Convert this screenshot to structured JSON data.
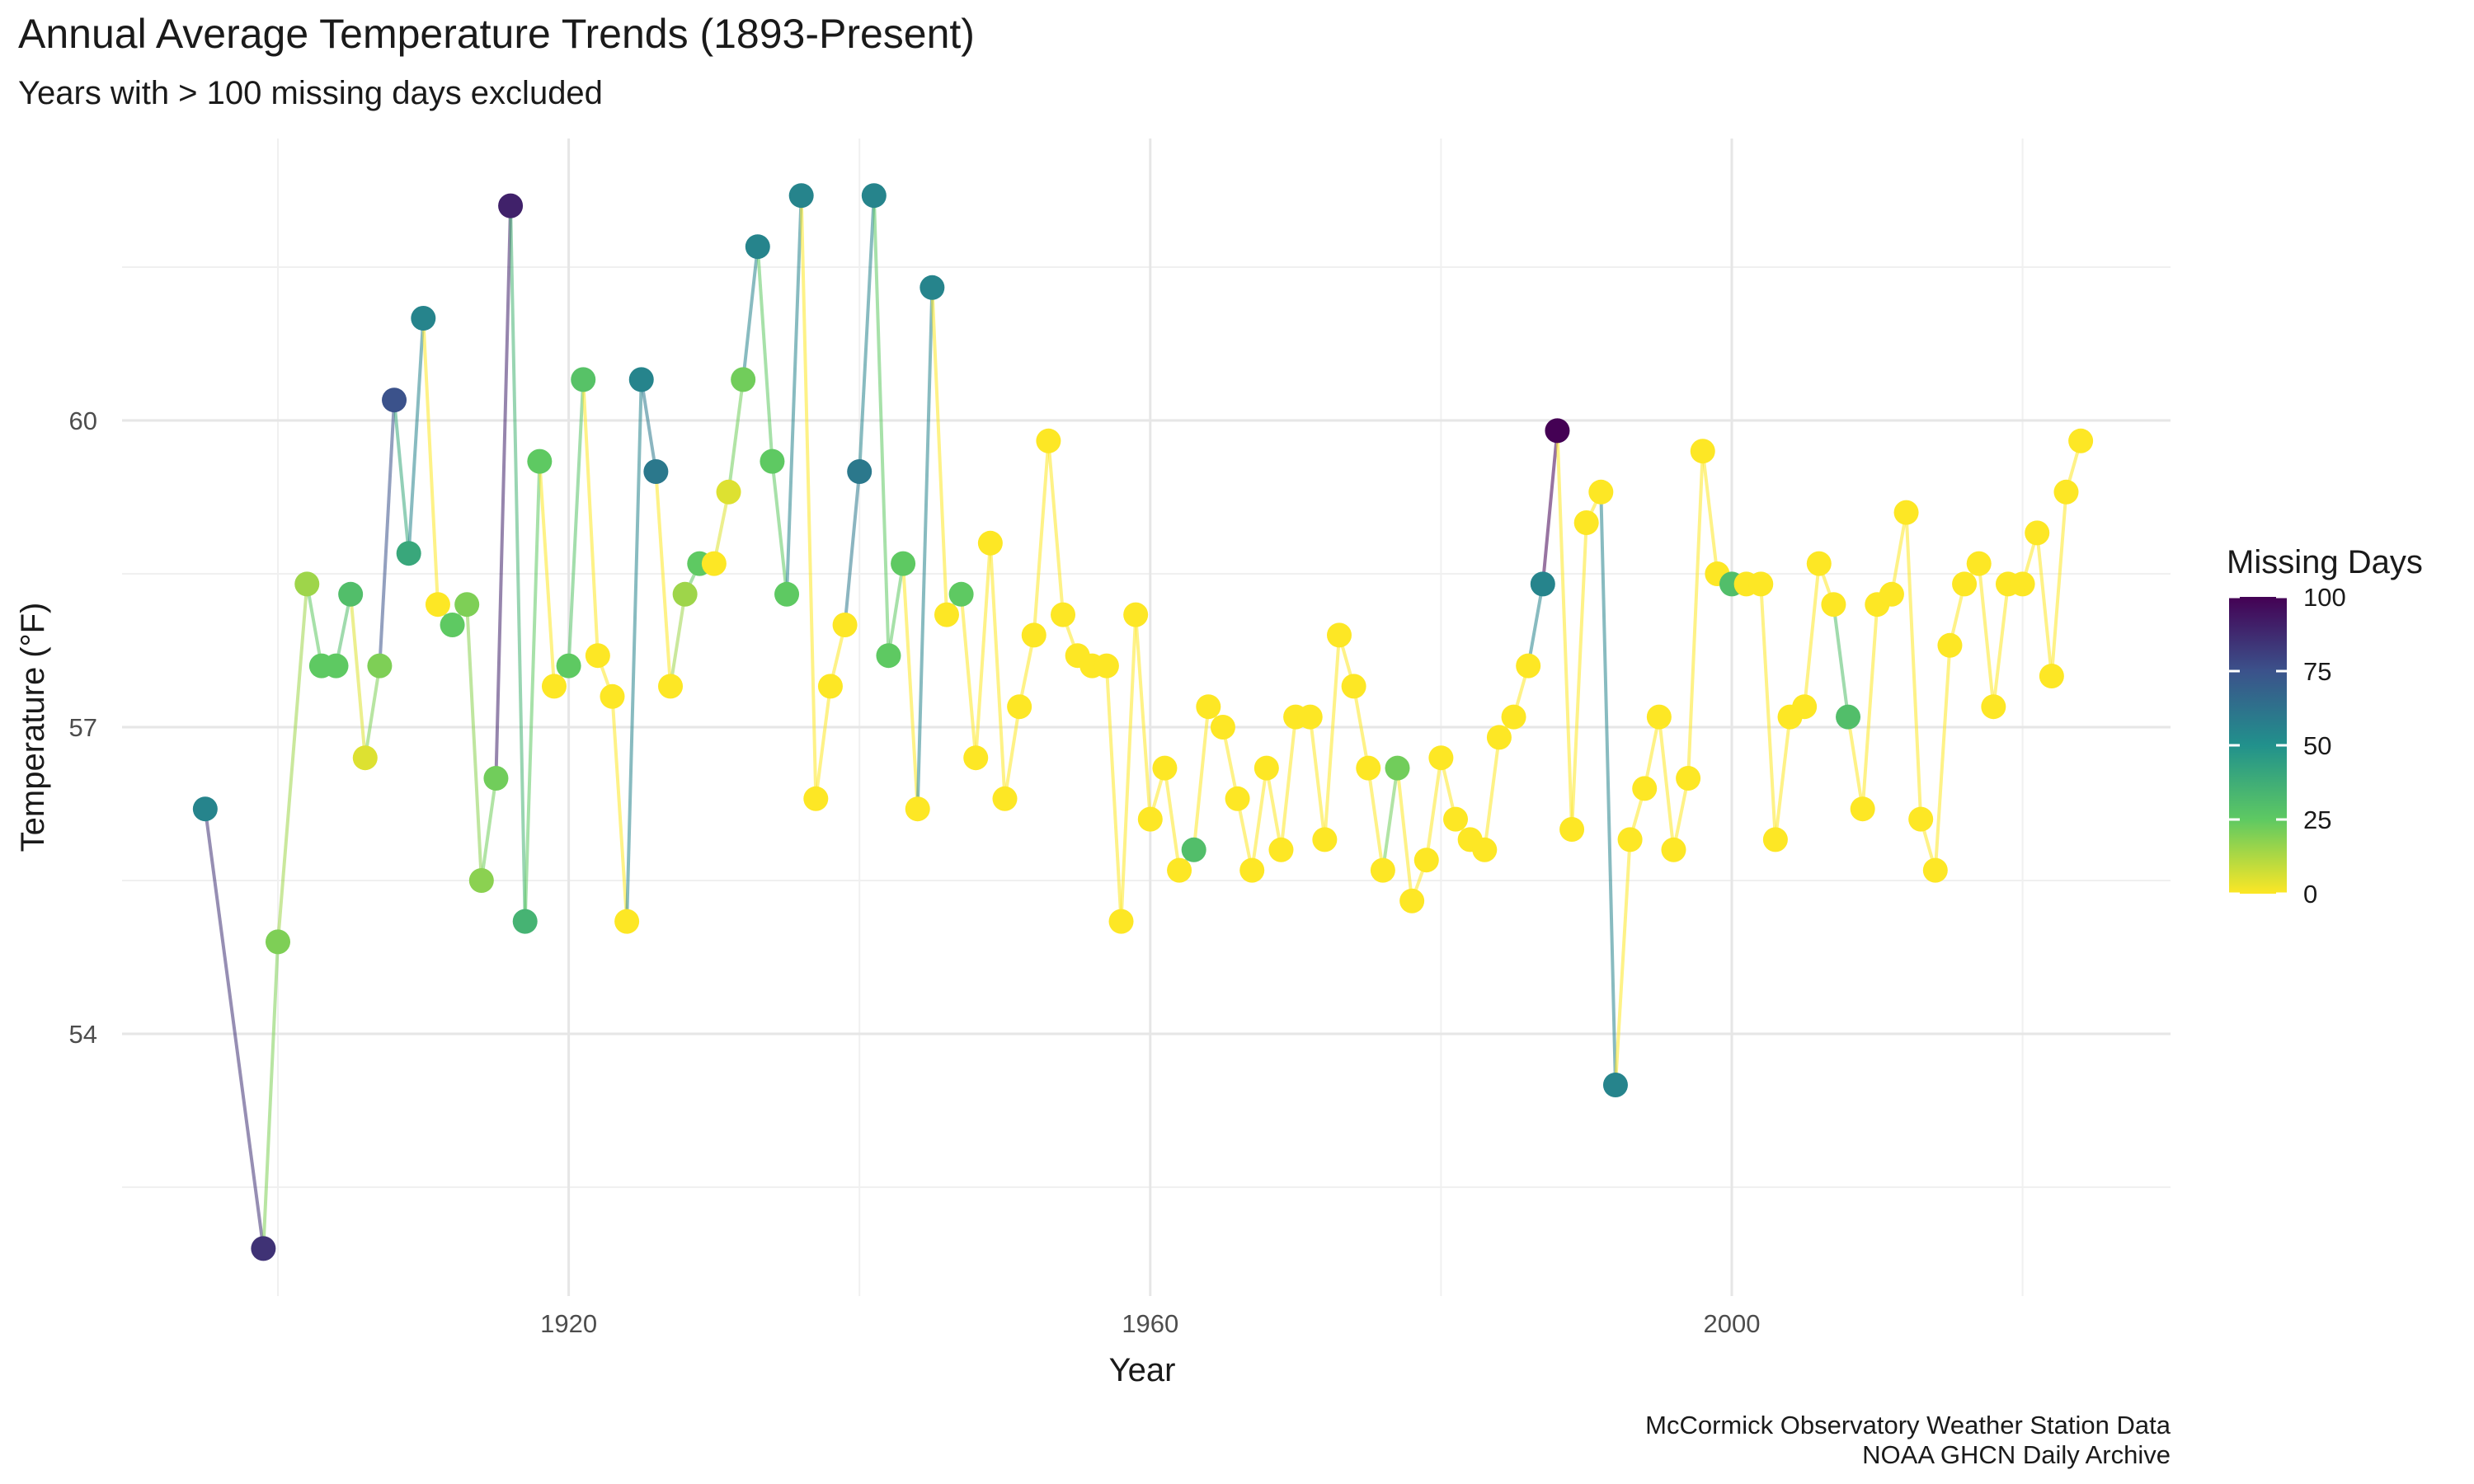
{
  "chart_data": {
    "type": "line",
    "title": "Annual Average Temperature Trends (1893-Present)",
    "subtitle": "Years with > 100 missing days excluded",
    "xlabel": "Year",
    "ylabel": "Temperature (°F)",
    "xlim": [
      1889,
      2027
    ],
    "ylim": [
      52.5,
      62.3
    ],
    "xticks": [
      1920,
      1960,
      2000
    ],
    "xtick_labels": [
      "1920",
      "1960",
      "2000"
    ],
    "yticks": [
      54,
      57,
      60
    ],
    "ytick_labels": [
      "54",
      "57",
      "60"
    ],
    "grid": true,
    "legend": {
      "title": "Missing Days",
      "position": "right",
      "colormap": "viridis (reversed: 0 = yellow, 100 = dark purple)",
      "ticks": [
        0,
        25,
        50,
        75,
        100
      ],
      "tick_labels": [
        "0",
        "25",
        "50",
        "75",
        "100"
      ],
      "range": [
        0,
        100
      ]
    },
    "caption": [
      "McCormick Observatory Weather Station Data",
      "NOAA GHCN Daily Archive"
    ],
    "series": [
      {
        "x_y_missing": [
          [
            1895,
            56.2,
            55
          ],
          [
            1899,
            51.9,
            85
          ],
          [
            1900,
            54.9,
            20
          ],
          [
            1902,
            58.4,
            15
          ],
          [
            1903,
            57.6,
            25
          ],
          [
            1904,
            57.6,
            25
          ],
          [
            1905,
            58.3,
            30
          ],
          [
            1906,
            56.7,
            5
          ],
          [
            1907,
            57.6,
            20
          ],
          [
            1908,
            60.2,
            75
          ],
          [
            1909,
            58.7,
            40
          ],
          [
            1910,
            61.0,
            55
          ],
          [
            1911,
            58.2,
            0
          ],
          [
            1912,
            58.0,
            25
          ],
          [
            1913,
            58.2,
            20
          ],
          [
            1914,
            55.5,
            18
          ],
          [
            1915,
            56.5,
            22
          ],
          [
            1916,
            62.1,
            90
          ],
          [
            1917,
            55.1,
            35
          ],
          [
            1918,
            59.6,
            25
          ],
          [
            1919,
            57.4,
            0
          ],
          [
            1920,
            57.6,
            25
          ],
          [
            1921,
            60.4,
            28
          ],
          [
            1922,
            57.7,
            0
          ],
          [
            1923,
            57.3,
            0
          ],
          [
            1924,
            55.1,
            0
          ],
          [
            1925,
            60.4,
            55
          ],
          [
            1926,
            59.5,
            60
          ],
          [
            1927,
            57.4,
            0
          ],
          [
            1928,
            58.3,
            15
          ],
          [
            1929,
            58.6,
            25
          ],
          [
            1930,
            58.6,
            0
          ],
          [
            1931,
            59.3,
            5
          ],
          [
            1932,
            60.4,
            22
          ],
          [
            1933,
            61.7,
            55
          ],
          [
            1934,
            59.6,
            25
          ],
          [
            1935,
            58.3,
            25
          ],
          [
            1936,
            62.2,
            55
          ],
          [
            1937,
            56.3,
            0
          ],
          [
            1938,
            57.4,
            0
          ],
          [
            1939,
            58.0,
            0
          ],
          [
            1940,
            59.5,
            60
          ],
          [
            1941,
            62.2,
            55
          ],
          [
            1942,
            57.7,
            25
          ],
          [
            1943,
            58.6,
            25
          ],
          [
            1944,
            56.2,
            0
          ],
          [
            1945,
            61.3,
            55
          ],
          [
            1946,
            58.1,
            0
          ],
          [
            1947,
            58.3,
            25
          ],
          [
            1948,
            56.7,
            0
          ],
          [
            1949,
            58.8,
            0
          ],
          [
            1950,
            56.3,
            0
          ],
          [
            1951,
            57.2,
            0
          ],
          [
            1952,
            57.9,
            0
          ],
          [
            1953,
            59.8,
            0
          ],
          [
            1954,
            58.1,
            0
          ],
          [
            1955,
            57.7,
            0
          ],
          [
            1956,
            57.6,
            0
          ],
          [
            1957,
            57.6,
            0
          ],
          [
            1958,
            55.1,
            0
          ],
          [
            1959,
            58.1,
            0
          ],
          [
            1960,
            56.1,
            0
          ],
          [
            1961,
            56.6,
            0
          ],
          [
            1962,
            55.6,
            0
          ],
          [
            1963,
            55.8,
            30
          ],
          [
            1964,
            57.2,
            0
          ],
          [
            1965,
            57.0,
            0
          ],
          [
            1966,
            56.3,
            0
          ],
          [
            1967,
            55.6,
            0
          ],
          [
            1968,
            56.6,
            0
          ],
          [
            1969,
            55.8,
            0
          ],
          [
            1970,
            57.1,
            0
          ],
          [
            1971,
            57.1,
            0
          ],
          [
            1972,
            55.9,
            0
          ],
          [
            1973,
            57.9,
            0
          ],
          [
            1974,
            57.4,
            0
          ],
          [
            1975,
            56.6,
            0
          ],
          [
            1976,
            55.6,
            0
          ],
          [
            1977,
            56.6,
            22
          ],
          [
            1978,
            55.3,
            0
          ],
          [
            1979,
            55.7,
            0
          ],
          [
            1980,
            56.7,
            0
          ],
          [
            1981,
            56.1,
            0
          ],
          [
            1982,
            55.9,
            0
          ],
          [
            1983,
            55.8,
            0
          ],
          [
            1984,
            56.9,
            0
          ],
          [
            1985,
            57.1,
            0
          ],
          [
            1986,
            57.6,
            0
          ],
          [
            1987,
            58.4,
            55
          ],
          [
            1988,
            59.9,
            100
          ],
          [
            1989,
            56.0,
            0
          ],
          [
            1990,
            59.0,
            0
          ],
          [
            1991,
            59.3,
            0
          ],
          [
            1992,
            53.5,
            55
          ],
          [
            1993,
            55.9,
            0
          ],
          [
            1994,
            56.4,
            0
          ],
          [
            1995,
            57.1,
            0
          ],
          [
            1996,
            55.8,
            0
          ],
          [
            1997,
            56.5,
            0
          ],
          [
            1998,
            59.7,
            0
          ],
          [
            1999,
            58.5,
            0
          ],
          [
            2000,
            58.4,
            30
          ],
          [
            2001,
            58.4,
            0
          ],
          [
            2002,
            58.4,
            0
          ],
          [
            2003,
            55.9,
            0
          ],
          [
            2004,
            57.1,
            0
          ],
          [
            2005,
            57.2,
            0
          ],
          [
            2006,
            58.6,
            0
          ],
          [
            2007,
            58.2,
            0
          ],
          [
            2008,
            57.1,
            30
          ],
          [
            2009,
            56.2,
            0
          ],
          [
            2010,
            58.2,
            0
          ],
          [
            2011,
            58.3,
            0
          ],
          [
            2012,
            59.1,
            0
          ],
          [
            2013,
            56.1,
            0
          ],
          [
            2014,
            55.6,
            0
          ],
          [
            2015,
            57.8,
            0
          ],
          [
            2016,
            58.4,
            0
          ],
          [
            2017,
            58.6,
            0
          ],
          [
            2018,
            57.2,
            0
          ],
          [
            2019,
            58.4,
            0
          ],
          [
            2020,
            58.4,
            0
          ],
          [
            2021,
            58.9,
            0
          ],
          [
            2022,
            57.5,
            0
          ],
          [
            2023,
            59.3,
            0
          ],
          [
            2024,
            59.8,
            0
          ]
        ]
      }
    ]
  }
}
